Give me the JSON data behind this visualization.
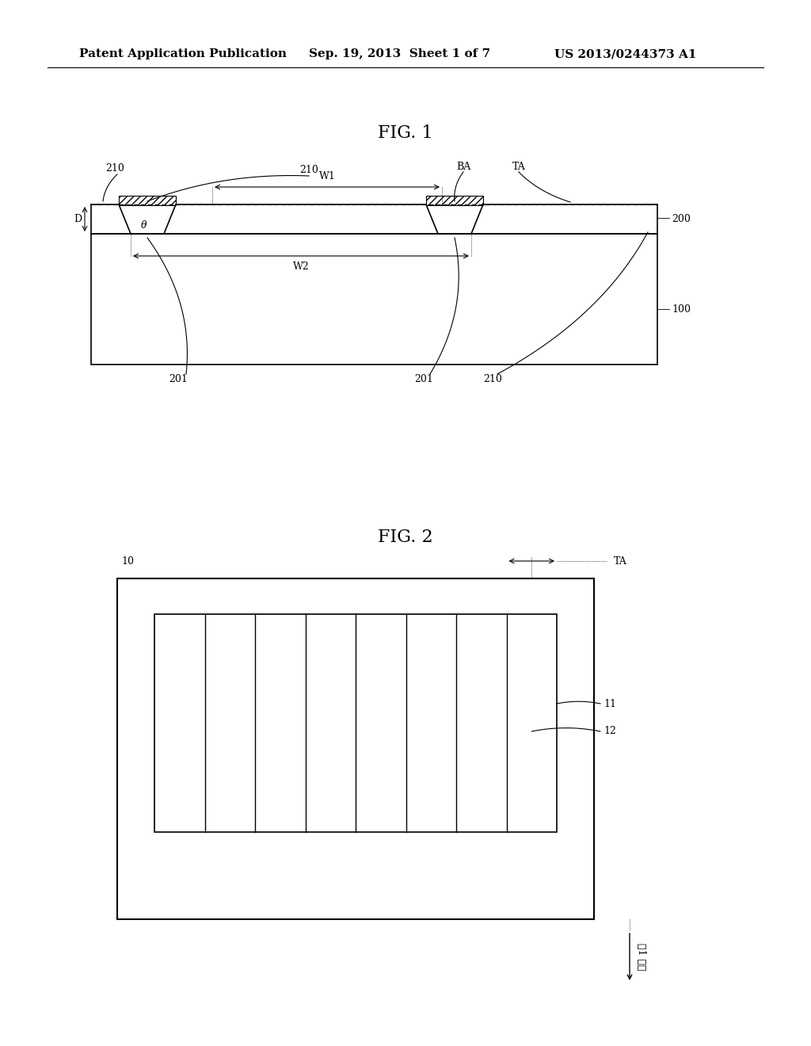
{
  "bg_color": "#ffffff",
  "header_text1": "Patent Application Publication",
  "header_text2": "Sep. 19, 2013  Sheet 1 of 7",
  "header_text3": "US 2013/0244373 A1",
  "fig1_title": "FIG. 1",
  "fig2_title": "FIG. 2",
  "fig1_labels": {
    "210_top_left": "210",
    "W1": "W1",
    "BA": "BA",
    "TA": "TA",
    "210_center": "210",
    "D": "D",
    "theta": "θ",
    "200": "200",
    "W2": "W2",
    "100": "100",
    "201_left": "201",
    "201_right": "201",
    "210_bottom": "210"
  },
  "fig2_labels": {
    "10": "10",
    "TA": "TA",
    "11": "11",
    "12": "12",
    "direction": "제1 방향"
  }
}
